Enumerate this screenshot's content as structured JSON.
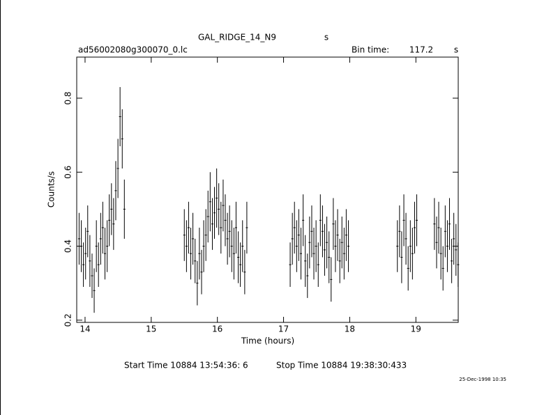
{
  "chart_data": {
    "type": "errorbar",
    "title": "GAL_RIDGE_14_N9",
    "title_unit": "s",
    "file_name": "ad56002080g300070_0.lc",
    "bin_time_label": "Bin time:",
    "bin_time": 117.2,
    "bin_time_unit": "s",
    "x_label": "Time (hours)",
    "y_label": "Counts/s",
    "start_time": "Start Time 10884 13:54:36:  6",
    "stop_time": "Stop Time 10884 19:38:30:433",
    "date_stamp": "25-Dec-1998 10:35",
    "xlim": [
      13.874,
      19.64
    ],
    "xticks": [
      14,
      15,
      16,
      17,
      18,
      19
    ],
    "ylim": [
      0.194,
      0.911
    ],
    "yticks": [
      0.2,
      0.4,
      0.6,
      0.8
    ],
    "color": "#000000",
    "x": [
      13.91,
      13.943,
      13.975,
      14.008,
      14.04,
      14.073,
      14.106,
      14.138,
      14.171,
      14.203,
      14.236,
      14.268,
      14.301,
      14.334,
      14.366,
      14.399,
      14.431,
      14.464,
      14.497,
      14.529,
      14.562,
      14.594,
      15.5,
      15.533,
      15.565,
      15.598,
      15.63,
      15.663,
      15.696,
      15.728,
      15.761,
      15.793,
      15.826,
      15.858,
      15.891,
      15.924,
      15.956,
      15.989,
      16.021,
      16.054,
      16.087,
      16.119,
      16.152,
      16.184,
      16.217,
      16.25,
      16.282,
      16.315,
      16.347,
      16.38,
      16.413,
      16.445,
      17.1,
      17.133,
      17.165,
      17.198,
      17.23,
      17.263,
      17.296,
      17.328,
      17.361,
      17.393,
      17.426,
      17.458,
      17.491,
      17.524,
      17.556,
      17.589,
      17.621,
      17.654,
      17.687,
      17.719,
      17.752,
      17.784,
      17.817,
      17.85,
      17.882,
      17.915,
      17.947,
      17.98,
      18.72,
      18.753,
      18.785,
      18.818,
      18.85,
      18.883,
      18.916,
      18.948,
      18.981,
      19.013,
      19.28,
      19.313,
      19.345,
      19.378,
      19.41,
      19.443,
      19.476,
      19.508,
      19.541,
      19.573,
      19.606,
      19.638
    ],
    "values": [
      0.42,
      0.4,
      0.35,
      0.38,
      0.44,
      0.36,
      0.32,
      0.28,
      0.4,
      0.35,
      0.42,
      0.45,
      0.38,
      0.4,
      0.47,
      0.5,
      0.46,
      0.55,
      0.61,
      0.75,
      0.69,
      0.5,
      0.43,
      0.4,
      0.45,
      0.38,
      0.42,
      0.36,
      0.3,
      0.38,
      0.33,
      0.4,
      0.43,
      0.48,
      0.52,
      0.46,
      0.49,
      0.53,
      0.5,
      0.45,
      0.51,
      0.47,
      0.42,
      0.44,
      0.4,
      0.38,
      0.45,
      0.37,
      0.35,
      0.4,
      0.33,
      0.45,
      0.35,
      0.42,
      0.45,
      0.4,
      0.43,
      0.38,
      0.47,
      0.36,
      0.32,
      0.41,
      0.44,
      0.38,
      0.4,
      0.35,
      0.47,
      0.44,
      0.39,
      0.41,
      0.37,
      0.31,
      0.46,
      0.4,
      0.43,
      0.36,
      0.41,
      0.38,
      0.43,
      0.4,
      0.4,
      0.44,
      0.37,
      0.47,
      0.42,
      0.34,
      0.4,
      0.38,
      0.45,
      0.47,
      0.46,
      0.41,
      0.45,
      0.38,
      0.34,
      0.44,
      0.4,
      0.46,
      0.36,
      0.42,
      0.39,
      0.35
    ],
    "errors": [
      0.07,
      0.07,
      0.06,
      0.07,
      0.07,
      0.07,
      0.06,
      0.06,
      0.07,
      0.06,
      0.07,
      0.07,
      0.07,
      0.07,
      0.07,
      0.07,
      0.07,
      0.08,
      0.08,
      0.08,
      0.08,
      0.08,
      0.07,
      0.07,
      0.07,
      0.07,
      0.07,
      0.06,
      0.06,
      0.07,
      0.06,
      0.07,
      0.07,
      0.07,
      0.08,
      0.07,
      0.07,
      0.08,
      0.07,
      0.07,
      0.07,
      0.07,
      0.07,
      0.07,
      0.07,
      0.07,
      0.07,
      0.07,
      0.06,
      0.07,
      0.06,
      0.07,
      0.06,
      0.07,
      0.07,
      0.07,
      0.07,
      0.07,
      0.07,
      0.07,
      0.06,
      0.07,
      0.07,
      0.07,
      0.07,
      0.06,
      0.07,
      0.07,
      0.07,
      0.07,
      0.07,
      0.06,
      0.07,
      0.07,
      0.07,
      0.06,
      0.07,
      0.07,
      0.07,
      0.07,
      0.07,
      0.07,
      0.07,
      0.07,
      0.07,
      0.06,
      0.07,
      0.07,
      0.07,
      0.07,
      0.07,
      0.07,
      0.07,
      0.07,
      0.06,
      0.07,
      0.07,
      0.07,
      0.06,
      0.07,
      0.07,
      0.06
    ]
  }
}
